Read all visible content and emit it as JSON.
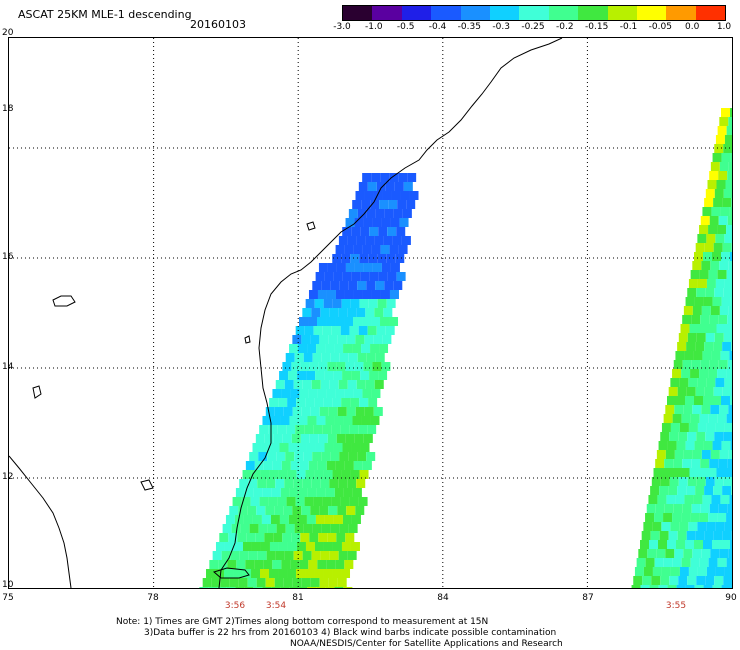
{
  "header": {
    "title": "ASCAT 25KM MLE-1 descending",
    "date": "20160103"
  },
  "colorbar": {
    "ticks": [
      "-3.0",
      "-1.0",
      "-0.5",
      "-0.4",
      "-0.35",
      "-0.3",
      "-0.25",
      "-0.2",
      "-0.15",
      "-0.1",
      "-0.05",
      "0.0",
      "1.0"
    ],
    "colors": [
      "#2a0030",
      "#5a00a0",
      "#1f1fe8",
      "#1a5aff",
      "#1a90ff",
      "#10d0ff",
      "#40ffd8",
      "#40ff90",
      "#40e840",
      "#b8f000",
      "#ffff00",
      "#ff9a00",
      "#ff3000"
    ]
  },
  "axes": {
    "x_ticks": [
      "75",
      "78",
      "81",
      "84",
      "87",
      "90"
    ],
    "y_ticks": [
      "20",
      "18",
      "16",
      "14",
      "12",
      "10"
    ]
  },
  "pass_times": [
    "3:56",
    "3:54",
    "3:55"
  ],
  "notes": {
    "line1": "Note: 1) Times are GMT 2)Times along bottom correspond to measurement at 15N",
    "line2": "3)Data buffer is 22 hrs from 20160103 4) Black wind barbs indicate possible contamination",
    "line3": "NOAA/NESDIS/Center for Satellite Applications and Research"
  }
}
